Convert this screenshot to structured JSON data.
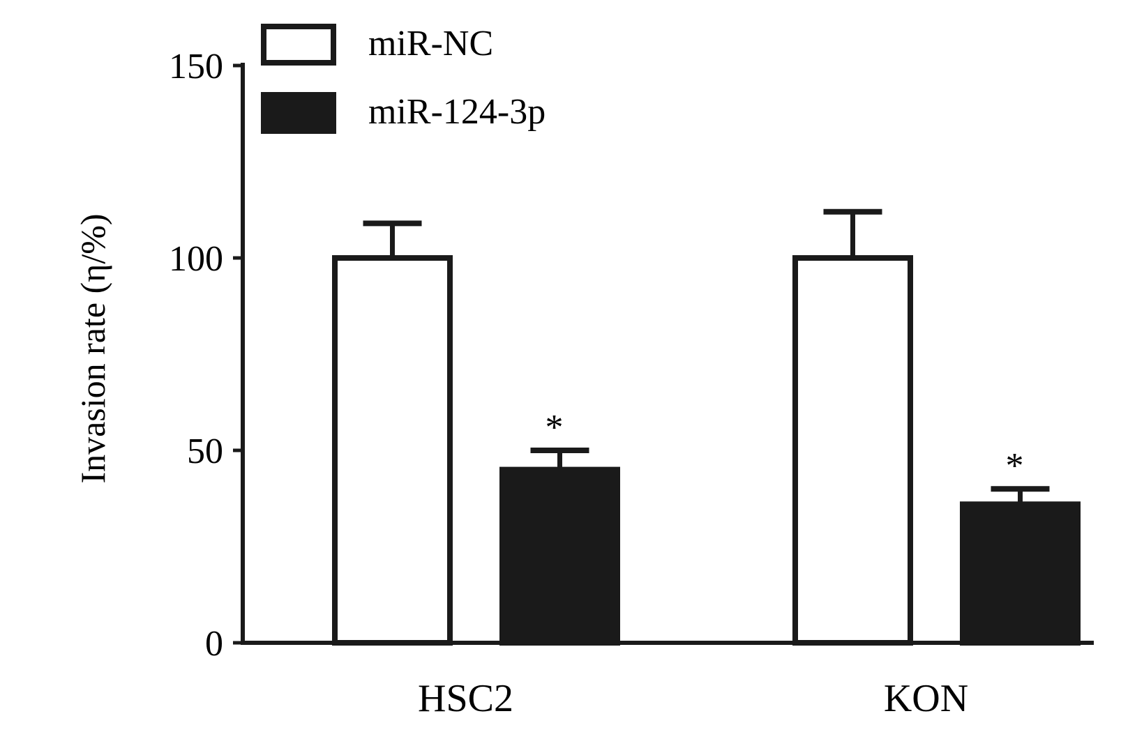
{
  "chart_data": {
    "type": "bar",
    "categories": [
      "HSC2",
      "KON"
    ],
    "series": [
      {
        "name": "miR-NC",
        "values": [
          100,
          100
        ],
        "errors": [
          9,
          12
        ],
        "color": "#ffffff",
        "stroke": "#1a1a1a",
        "annotations": [
          "",
          ""
        ]
      },
      {
        "name": "miR-124-3p",
        "values": [
          45,
          36
        ],
        "errors": [
          5,
          4
        ],
        "color": "#1a1a1a",
        "stroke": "#1a1a1a",
        "annotations": [
          "*",
          "*"
        ]
      }
    ],
    "ylabel": "Invasion rate (η/%)",
    "xlabel": "",
    "ylim": [
      0,
      150
    ],
    "yticks": [
      0,
      50,
      100,
      150
    ],
    "legend_position": "top-left",
    "grid": false
  }
}
